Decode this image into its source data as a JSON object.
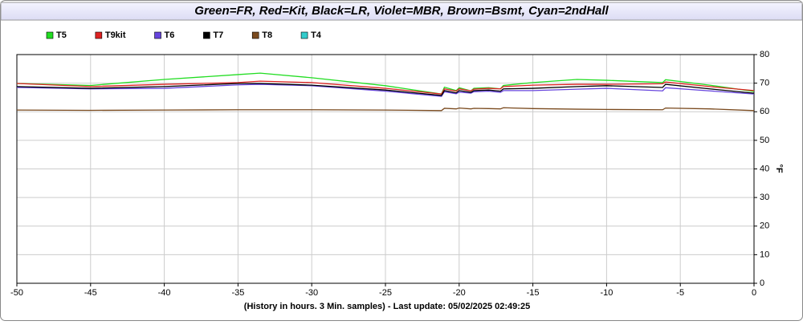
{
  "chart_data": {
    "type": "line",
    "title": "Green=FR, Red=Kit, Black=LR, Violet=MBR, Brown=Bsmt, Cyan=2ndHall",
    "x_label": "(History in hours. 3 Min. samples) - Last update: 05/02/2025 02:49:25",
    "y_label": "°F",
    "x": [
      -50,
      -45,
      -40,
      -35,
      -33.5,
      -30,
      -25,
      -21.2,
      -21,
      -20.2,
      -20,
      -19.2,
      -19,
      -18,
      -17.2,
      -17,
      -15,
      -12,
      -10,
      -6.2,
      -6,
      -3,
      0
    ],
    "series": [
      {
        "name": "T5",
        "color": "#22dd22",
        "values": [
          69.9,
          69.2,
          71.3,
          73.0,
          73.5,
          71.9,
          69.1,
          66.2,
          68.6,
          67.4,
          68.4,
          67.3,
          68.2,
          68.4,
          68.0,
          69.2,
          70.2,
          71.3,
          71.0,
          70.2,
          71.2,
          69.3,
          67.1
        ]
      },
      {
        "name": "T9kit",
        "color": "#dd2222",
        "values": [
          69.9,
          68.8,
          69.6,
          70.2,
          70.7,
          70.2,
          68.2,
          66.2,
          68.0,
          67.2,
          68.0,
          67.3,
          67.9,
          68.2,
          68.0,
          68.8,
          69.3,
          69.6,
          69.6,
          69.8,
          70.4,
          68.8,
          67.4
        ]
      },
      {
        "name": "T6",
        "color": "#6644dd",
        "values": [
          68.5,
          68.0,
          68.2,
          69.4,
          69.6,
          69.1,
          67.2,
          65.4,
          67.0,
          66.3,
          66.9,
          66.5,
          67.0,
          67.2,
          66.8,
          67.4,
          67.4,
          67.9,
          68.2,
          67.3,
          68.4,
          67.3,
          66.2
        ]
      },
      {
        "name": "T7",
        "color": "#000000",
        "values": [
          68.8,
          68.2,
          68.8,
          69.9,
          69.9,
          69.3,
          67.6,
          65.7,
          67.4,
          66.6,
          67.4,
          66.8,
          67.4,
          67.6,
          67.2,
          68.0,
          68.2,
          68.8,
          69.1,
          68.5,
          69.6,
          68.0,
          66.5
        ]
      },
      {
        "name": "T8",
        "color": "#7a4a1e",
        "values": [
          60.6,
          60.5,
          60.6,
          60.7,
          60.7,
          60.7,
          60.6,
          60.4,
          61.2,
          61.0,
          61.3,
          61.0,
          61.2,
          61.1,
          61.0,
          61.4,
          61.1,
          60.9,
          60.8,
          60.7,
          61.3,
          61.0,
          60.4
        ]
      },
      {
        "name": "T4",
        "color": "#33cccc",
        "values": [
          null,
          null,
          null,
          null,
          null,
          null,
          null,
          null,
          null,
          null,
          null,
          null,
          null,
          null,
          null,
          null,
          null,
          null,
          null,
          null,
          null,
          null,
          null
        ]
      }
    ],
    "xlim": [
      -50,
      0
    ],
    "xticks": [
      -50,
      -45,
      -40,
      -35,
      -30,
      -25,
      -20,
      -15,
      -10,
      -5,
      0
    ],
    "ylim": [
      0,
      80
    ],
    "yticks": [
      0,
      10,
      20,
      30,
      40,
      50,
      60,
      70,
      80
    ],
    "grid": true,
    "legend": "top-left"
  }
}
